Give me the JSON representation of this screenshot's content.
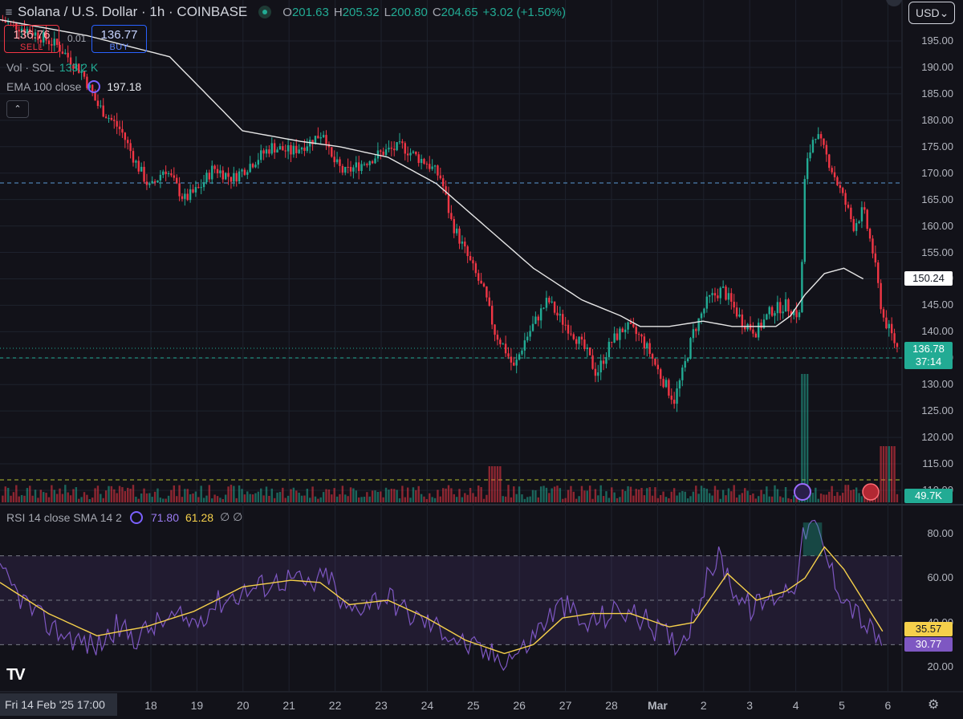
{
  "header": {
    "symbol_title": "Solana / U.S. Dollar · 1h · COINBASE",
    "ohlc": [
      {
        "key": "O",
        "value": "201.63"
      },
      {
        "key": "H",
        "value": "205.32"
      },
      {
        "key": "L",
        "value": "200.80"
      },
      {
        "key": "C",
        "value": "204.65"
      },
      {
        "key": "",
        "value": "+3.02 (+1.50%)"
      }
    ],
    "currency": "USD"
  },
  "trade": {
    "sell_price": "136.76",
    "sell_label": "SELL",
    "buy_price": "136.77",
    "buy_label": "BUY",
    "spread": "0.01"
  },
  "legends": {
    "vol_key": "Vol · SOL",
    "vol_value": "133.2 K",
    "ema_key": "EMA 100 close",
    "ema_value": "197.18",
    "rsi_key": "RSI 14 close SMA 14 2",
    "rsi_value": "71.80",
    "rsi_sma_value": "61.28",
    "rsi_extra": "∅ ∅"
  },
  "price_axis": {
    "ticks": [
      "195.00",
      "190.00",
      "185.00",
      "180.00",
      "175.00",
      "170.00",
      "165.00",
      "160.00",
      "155.00",
      "150.00",
      "145.00",
      "140.00",
      "135.00",
      "130.00",
      "125.00",
      "120.00",
      "115.00",
      "110.00"
    ],
    "ema_tag": "150.24",
    "last_price_tag": "136.78",
    "countdown_tag": "37:14",
    "volume_tag": "49.7K"
  },
  "rsi_axis": {
    "ticks": [
      "80.00",
      "60.00",
      "40.00",
      "20.00"
    ],
    "sma_tag": "35.57",
    "rsi_tag": "30.77"
  },
  "time_axis": {
    "date_box": "Fri 14 Feb '25   17:00",
    "labels": [
      "18",
      "19",
      "20",
      "21",
      "22",
      "23",
      "24",
      "25",
      "26",
      "27",
      "28",
      "Mar",
      "2",
      "3",
      "4",
      "5",
      "6"
    ]
  },
  "colors": {
    "up": "#22ab94",
    "down": "#f23645",
    "ema": "#e6e6e6",
    "rsi": "#7e57c2",
    "rsi_sma": "#f5d04b",
    "bg": "#121219",
    "grid": "#1e222d"
  },
  "chart_data": {
    "type": "candlestick",
    "title": "Solana / U.S. Dollar · 1h · COINBASE",
    "ylim": [
      108,
      199
    ],
    "x_labels": [
      "18",
      "19",
      "20",
      "21",
      "22",
      "23",
      "24",
      "25",
      "26",
      "27",
      "28",
      "Mar",
      "2",
      "3",
      "4",
      "5",
      "6"
    ],
    "close_path": [
      [
        0,
        199
      ],
      [
        6,
        197
      ],
      [
        12,
        194
      ],
      [
        17,
        189
      ],
      [
        20,
        183
      ],
      [
        25,
        178
      ],
      [
        28,
        172
      ],
      [
        31,
        167
      ],
      [
        34,
        171
      ],
      [
        38,
        165
      ],
      [
        41,
        167
      ],
      [
        44,
        171
      ],
      [
        48,
        169
      ],
      [
        52,
        172
      ],
      [
        56,
        175
      ],
      [
        60,
        174
      ],
      [
        64,
        176
      ],
      [
        67,
        178
      ],
      [
        68,
        173
      ],
      [
        71,
        170
      ],
      [
        75,
        172
      ],
      [
        79,
        174
      ],
      [
        83,
        175
      ],
      [
        86,
        173
      ],
      [
        88,
        172
      ],
      [
        91,
        169
      ],
      [
        93,
        161
      ],
      [
        96,
        155
      ],
      [
        100,
        147
      ],
      [
        102,
        140
      ],
      [
        104,
        137
      ],
      [
        106,
        133
      ],
      [
        108,
        138
      ],
      [
        111,
        143
      ],
      [
        113,
        146
      ],
      [
        115,
        143
      ],
      [
        118,
        140
      ],
      [
        121,
        136
      ],
      [
        123,
        132
      ],
      [
        126,
        138
      ],
      [
        129,
        141
      ],
      [
        132,
        139
      ],
      [
        134,
        136
      ],
      [
        136,
        132
      ],
      [
        139,
        127
      ],
      [
        141,
        133
      ],
      [
        143,
        140
      ],
      [
        146,
        146
      ],
      [
        149,
        148
      ],
      [
        151,
        145
      ],
      [
        153,
        142
      ],
      [
        156,
        140
      ],
      [
        159,
        144
      ],
      [
        162,
        145
      ],
      [
        165,
        143
      ],
      [
        166,
        170
      ],
      [
        168,
        178
      ],
      [
        171,
        172
      ],
      [
        174,
        165
      ],
      [
        176,
        160
      ],
      [
        178,
        163
      ],
      [
        180,
        155
      ],
      [
        182,
        143
      ],
      [
        185,
        137
      ]
    ],
    "ema_path": [
      [
        0,
        199
      ],
      [
        18,
        196
      ],
      [
        35,
        192
      ],
      [
        50,
        178
      ],
      [
        62,
        176
      ],
      [
        70,
        175
      ],
      [
        80,
        173
      ],
      [
        90,
        168
      ],
      [
        100,
        160
      ],
      [
        110,
        152
      ],
      [
        120,
        146
      ],
      [
        128,
        143
      ],
      [
        132,
        141
      ],
      [
        138,
        141
      ],
      [
        145,
        142
      ],
      [
        151,
        141
      ],
      [
        160,
        141
      ],
      [
        163,
        143
      ],
      [
        166,
        147
      ],
      [
        170,
        151
      ],
      [
        174,
        152
      ],
      [
        178,
        150
      ]
    ],
    "rsi_path": [
      [
        0,
        62
      ],
      [
        4,
        52
      ],
      [
        8,
        42
      ],
      [
        12,
        36
      ],
      [
        16,
        32
      ],
      [
        20,
        29
      ],
      [
        24,
        38
      ],
      [
        28,
        33
      ],
      [
        32,
        39
      ],
      [
        36,
        42
      ],
      [
        40,
        40
      ],
      [
        44,
        48
      ],
      [
        48,
        52
      ],
      [
        52,
        55
      ],
      [
        56,
        58
      ],
      [
        60,
        60
      ],
      [
        64,
        56
      ],
      [
        68,
        62
      ],
      [
        70,
        48
      ],
      [
        72,
        45
      ],
      [
        76,
        50
      ],
      [
        80,
        52
      ],
      [
        84,
        44
      ],
      [
        88,
        40
      ],
      [
        92,
        36
      ],
      [
        96,
        30
      ],
      [
        100,
        26
      ],
      [
        104,
        24
      ],
      [
        108,
        28
      ],
      [
        112,
        40
      ],
      [
        116,
        48
      ],
      [
        118,
        45
      ],
      [
        120,
        38
      ],
      [
        124,
        42
      ],
      [
        128,
        46
      ],
      [
        132,
        42
      ],
      [
        136,
        36
      ],
      [
        140,
        30
      ],
      [
        142,
        38
      ],
      [
        146,
        60
      ],
      [
        148,
        70
      ],
      [
        150,
        62
      ],
      [
        152,
        52
      ],
      [
        155,
        46
      ],
      [
        158,
        50
      ],
      [
        162,
        55
      ],
      [
        164,
        58
      ],
      [
        166,
        82
      ],
      [
        168,
        84
      ],
      [
        170,
        72
      ],
      [
        172,
        60
      ],
      [
        174,
        52
      ],
      [
        178,
        40
      ],
      [
        182,
        30
      ]
    ],
    "rsi_sma_path": [
      [
        0,
        58
      ],
      [
        10,
        44
      ],
      [
        20,
        34
      ],
      [
        30,
        38
      ],
      [
        40,
        45
      ],
      [
        50,
        56
      ],
      [
        60,
        59
      ],
      [
        66,
        58
      ],
      [
        72,
        48
      ],
      [
        80,
        50
      ],
      [
        88,
        42
      ],
      [
        96,
        32
      ],
      [
        104,
        26
      ],
      [
        110,
        30
      ],
      [
        116,
        42
      ],
      [
        122,
        44
      ],
      [
        130,
        44
      ],
      [
        138,
        38
      ],
      [
        143,
        40
      ],
      [
        150,
        62
      ],
      [
        156,
        50
      ],
      [
        162,
        54
      ],
      [
        166,
        60
      ],
      [
        170,
        74
      ],
      [
        174,
        64
      ],
      [
        178,
        50
      ],
      [
        182,
        36
      ]
    ]
  }
}
